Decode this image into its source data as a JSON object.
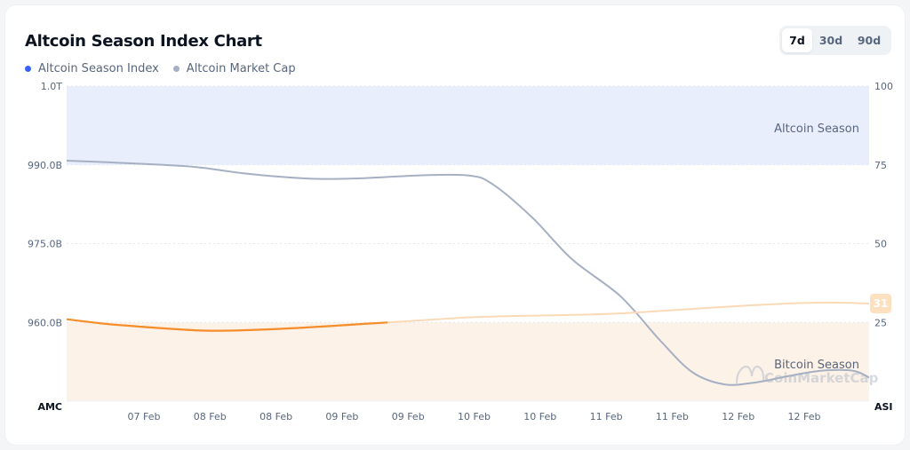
{
  "title": "Altcoin Season Index Chart",
  "legend": [
    {
      "label": "Altcoin Season Index",
      "color": "#3861fb"
    },
    {
      "label": "Altcoin Market Cap",
      "color": "#a6b0c3"
    }
  ],
  "range": {
    "options": [
      "7d",
      "30d",
      "90d"
    ],
    "selected": "7d"
  },
  "watermark": "CoinMarketCap",
  "colors": {
    "altcoin_zone": "#e9eefd",
    "bitcoin_zone": "#fdf2e7",
    "index_line": "#f68d2b",
    "index_line_faded": "#fad9b6",
    "market_cap_line": "#a6b0c3",
    "badge_bg": "#fde0c0",
    "badge_text": "#ffffff"
  },
  "chart_data": {
    "type": "line",
    "x_tick_labels": [
      "07 Feb",
      "08 Feb",
      "08 Feb",
      "09 Feb",
      "09 Feb",
      "10 Feb",
      "10 Feb",
      "11 Feb",
      "11 Feb",
      "12 Feb",
      "12 Feb"
    ],
    "left_axis": {
      "label": "AMC",
      "ticks": [
        "1.0T",
        "990.0B",
        "975.0B",
        "960.0B"
      ],
      "tick_values": [
        1005,
        990,
        975,
        960
      ],
      "range": [
        945,
        1005
      ]
    },
    "right_axis": {
      "label": "ASI",
      "ticks": [
        "100",
        "75",
        "50",
        "25"
      ],
      "tick_values": [
        100,
        75,
        50,
        25
      ],
      "range": [
        0,
        100
      ]
    },
    "zones": {
      "altcoin_season": {
        "label": "Altcoin Season",
        "from": 75,
        "to": 100
      },
      "bitcoin_season": {
        "label": "Bitcoin Season",
        "from": 0,
        "to": 25
      }
    },
    "series": [
      {
        "name": "Altcoin Season Index",
        "axis": "right",
        "highlight_until_t": 0.4,
        "x": [
          0,
          0.05,
          0.1,
          0.16,
          0.2,
          0.25,
          0.3,
          0.35,
          0.4,
          0.45,
          0.5,
          0.55,
          0.6,
          0.65,
          0.7,
          0.75,
          0.8,
          0.85,
          0.9,
          0.95,
          1
        ],
        "values": [
          26,
          24.5,
          23.5,
          22.5,
          22.4,
          22.8,
          23.4,
          24.2,
          25,
          25.8,
          26.6,
          27,
          27.2,
          27.5,
          28,
          28.8,
          29.6,
          30.4,
          31,
          31.3,
          31
        ],
        "last_value_label": "31"
      },
      {
        "name": "Altcoin Market Cap",
        "axis": "left",
        "x": [
          0,
          0.08,
          0.16,
          0.22,
          0.3,
          0.36,
          0.44,
          0.5,
          0.53,
          0.58,
          0.63,
          0.69,
          0.74,
          0.78,
          0.82,
          0.86,
          0.9,
          0.94,
          0.98,
          1
        ],
        "values": [
          990.8,
          990.3,
          989.6,
          988.4,
          987.4,
          987.4,
          988.0,
          988.0,
          986.4,
          980.0,
          972.0,
          965.0,
          956.5,
          950.5,
          948.2,
          948.6,
          949.8,
          950.8,
          950.8,
          949.5
        ]
      }
    ]
  }
}
